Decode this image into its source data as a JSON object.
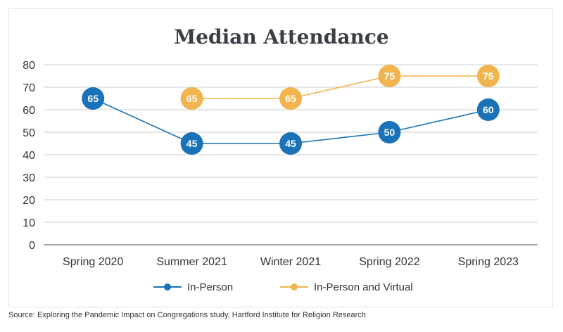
{
  "chart_data": {
    "type": "line",
    "title": "Median Attendance",
    "categories": [
      "Spring 2020",
      "Summer 2021",
      "Winter 2021",
      "Spring 2022",
      "Spring 2023"
    ],
    "ylim": [
      0,
      80
    ],
    "yticks": [
      0,
      10,
      20,
      30,
      40,
      50,
      60,
      70,
      80
    ],
    "grid": true,
    "legend_position": "bottom",
    "series": [
      {
        "name": "In-Person",
        "color": "#1a72b8",
        "values": [
          65,
          45,
          45,
          50,
          60
        ]
      },
      {
        "name": "In-Person and Virtual",
        "color": "#f2b44e",
        "values": [
          null,
          65,
          65,
          75,
          75
        ]
      }
    ]
  },
  "source": "Source: Exploring the Pandemic Impact on Congregations study, Hartford Institute for Religion Research"
}
